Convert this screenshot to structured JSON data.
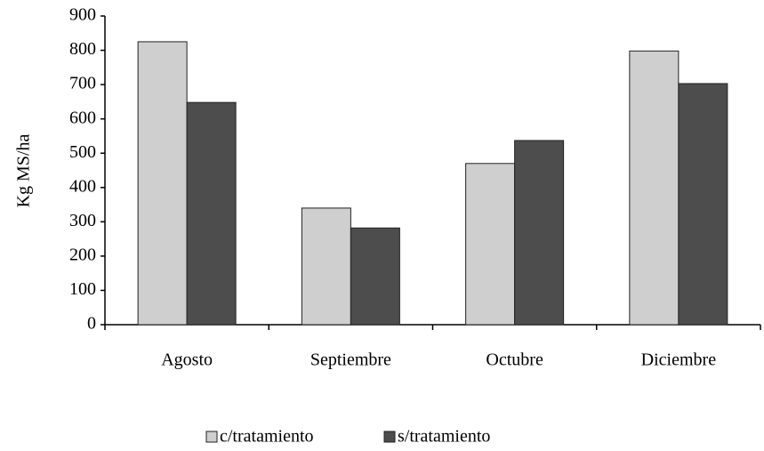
{
  "chart_data": {
    "type": "bar",
    "y_label": "Kg MS/ha",
    "categories": [
      "Agosto",
      "Septiembre",
      "Octubre",
      "Diciembre"
    ],
    "series": [
      {
        "name": "c/tratamiento",
        "color": "#cfcfcf",
        "values": [
          825,
          340,
          470,
          798
        ]
      },
      {
        "name": "s/tratamiento",
        "color": "#4d4d4d",
        "values": [
          648,
          282,
          537,
          703
        ]
      }
    ],
    "ylim": [
      0,
      900
    ],
    "yticks": [
      0,
      100,
      200,
      300,
      400,
      500,
      600,
      700,
      800,
      900
    ],
    "grid": false,
    "legend": "bottom"
  }
}
